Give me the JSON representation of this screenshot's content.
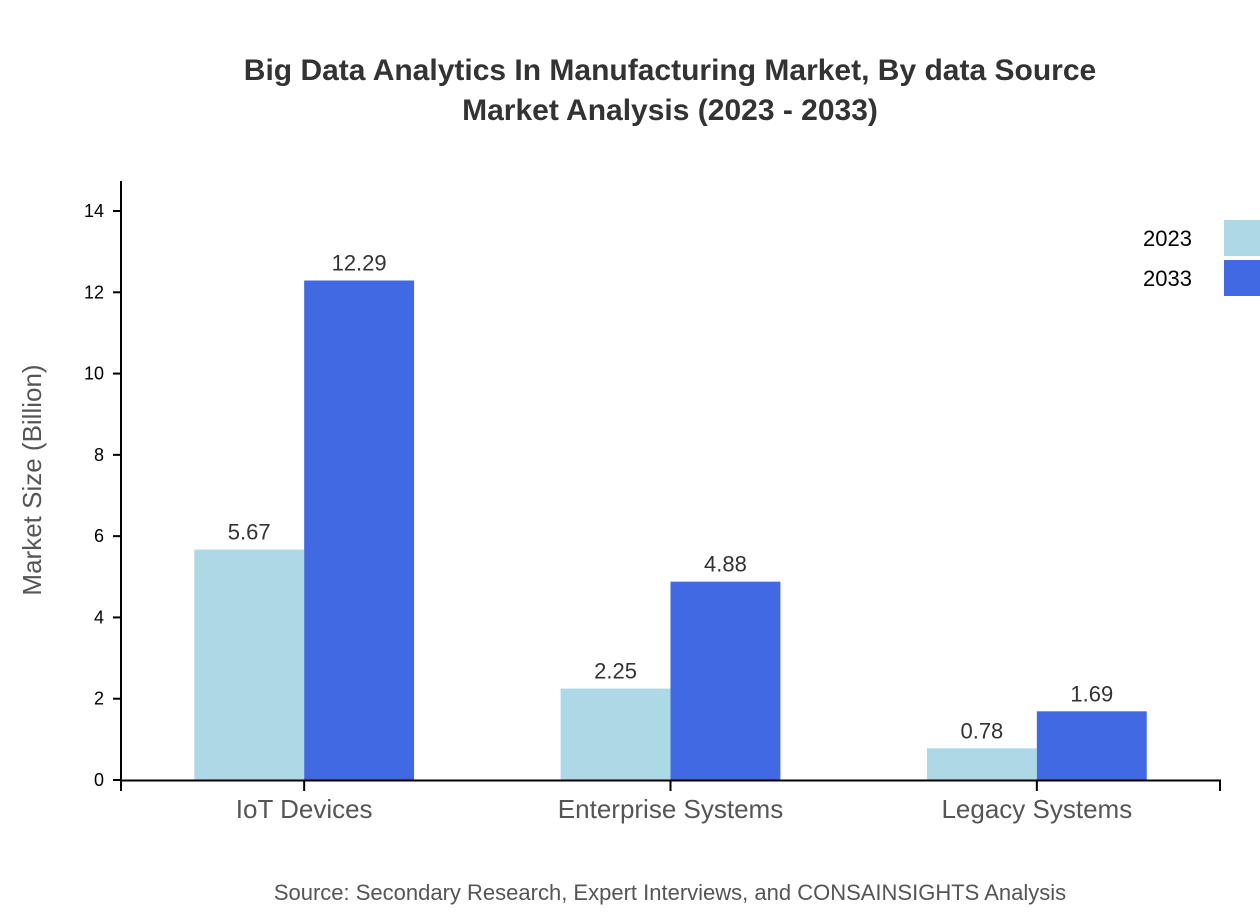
{
  "chart_data": {
    "type": "bar",
    "title": [
      "Big Data Analytics In Manufacturing Market, By data Source",
      "Market Analysis (2023 - 2033)"
    ],
    "xlabel": "",
    "ylabel": "Market Size (Billion)",
    "ylim": [
      0,
      14.75
    ],
    "yticks": [
      0,
      2,
      4,
      6,
      8,
      10,
      12,
      14
    ],
    "categories": [
      "IoT Devices",
      "Enterprise Systems",
      "Legacy Systems"
    ],
    "series": [
      {
        "name": "2023",
        "color": "#add8e6",
        "values": [
          5.67,
          2.25,
          0.78
        ]
      },
      {
        "name": "2033",
        "color": "#4169e1",
        "values": [
          12.29,
          4.88,
          1.69
        ]
      }
    ],
    "grid": false,
    "legend": "top-right",
    "source": "Source: Secondary Research, Expert Interviews, and CONSAINSIGHTS Analysis"
  }
}
